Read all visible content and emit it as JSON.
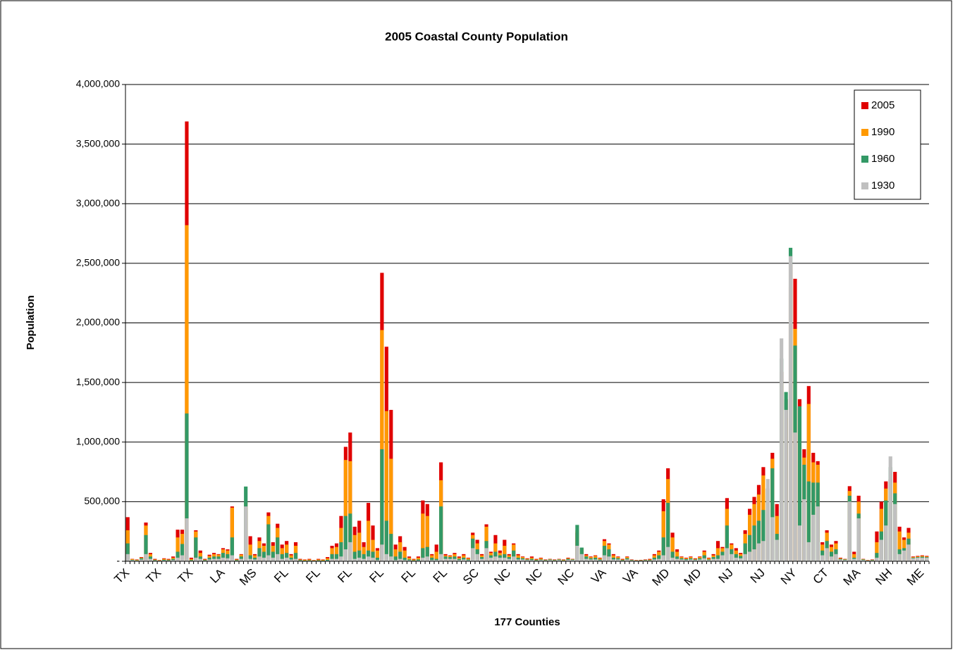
{
  "chart_data": {
    "type": "bar",
    "title": "2005 Coastal County Population",
    "xlabel": "177 Counties",
    "ylabel": "Population",
    "categories": [
      "TX",
      null,
      null,
      null,
      null,
      null,
      null,
      "TX",
      null,
      null,
      null,
      null,
      null,
      null,
      "TX",
      null,
      null,
      null,
      null,
      null,
      null,
      "LA",
      null,
      null,
      null,
      null,
      null,
      null,
      "MS",
      null,
      null,
      null,
      null,
      null,
      null,
      "FL",
      null,
      null,
      null,
      null,
      null,
      null,
      "FL",
      null,
      null,
      null,
      null,
      null,
      null,
      "FL",
      null,
      null,
      null,
      null,
      null,
      null,
      "FL",
      null,
      null,
      null,
      null,
      null,
      null,
      "FL",
      null,
      null,
      null,
      null,
      null,
      null,
      "FL",
      null,
      null,
      null,
      null,
      null,
      null,
      "SC",
      null,
      null,
      null,
      null,
      null,
      null,
      "NC",
      null,
      null,
      null,
      null,
      null,
      null,
      "NC",
      null,
      null,
      null,
      null,
      null,
      null,
      "NC",
      null,
      null,
      null,
      null,
      null,
      null,
      "VA",
      null,
      null,
      null,
      null,
      null,
      null,
      "VA",
      null,
      null,
      null,
      null,
      null,
      null,
      "MD",
      null,
      null,
      null,
      null,
      null,
      null,
      "MD",
      null,
      null,
      null,
      null,
      null,
      null,
      "NJ",
      null,
      null,
      null,
      null,
      null,
      null,
      "NJ",
      null,
      null,
      null,
      null,
      null,
      null,
      "NY",
      null,
      null,
      null,
      null,
      null,
      null,
      "CT",
      null,
      null,
      null,
      null,
      null,
      null,
      "MA",
      null,
      null,
      null,
      null,
      null,
      null,
      "NH",
      null,
      null,
      null,
      null,
      null,
      null,
      "ME",
      null
    ],
    "series": [
      {
        "name": "2005",
        "color": "#e00000",
        "values": [
          370000,
          20000,
          15000,
          35000,
          325000,
          70000,
          20000,
          10000,
          25000,
          20000,
          40000,
          265000,
          265000,
          3690000,
          30000,
          260000,
          90000,
          20000,
          55000,
          70000,
          60000,
          110000,
          100000,
          460000,
          20000,
          60000,
          450000,
          210000,
          60000,
          200000,
          150000,
          410000,
          160000,
          315000,
          140000,
          170000,
          60000,
          160000,
          20000,
          15000,
          20000,
          10000,
          20000,
          15000,
          35000,
          130000,
          150000,
          380000,
          960000,
          1080000,
          290000,
          340000,
          160000,
          490000,
          300000,
          110000,
          2420000,
          1800000,
          1270000,
          140000,
          210000,
          120000,
          40000,
          20000,
          40000,
          510000,
          480000,
          60000,
          140000,
          830000,
          60000,
          50000,
          70000,
          40000,
          60000,
          30000,
          240000,
          180000,
          60000,
          310000,
          80000,
          220000,
          90000,
          180000,
          60000,
          150000,
          60000,
          40000,
          25000,
          40000,
          20000,
          30000,
          15000,
          20000,
          15000,
          20000,
          15000,
          30000,
          20000,
          240000,
          110000,
          60000,
          40000,
          50000,
          30000,
          185000,
          150000,
          60000,
          40000,
          20000,
          40000,
          15000,
          10000,
          12000,
          15000,
          20000,
          60000,
          90000,
          520000,
          780000,
          240000,
          100000,
          40000,
          30000,
          40000,
          25000,
          40000,
          90000,
          30000,
          60000,
          170000,
          120000,
          530000,
          150000,
          110000,
          70000,
          260000,
          440000,
          540000,
          640000,
          790000,
          610000,
          910000,
          480000,
          1590000,
          1360000,
          2490000,
          2370000,
          1360000,
          940000,
          1470000,
          910000,
          840000,
          160000,
          260000,
          140000,
          170000,
          30000,
          20000,
          630000,
          80000,
          550000,
          20000,
          10000,
          15000,
          250000,
          500000,
          670000,
          690000,
          750000,
          290000,
          200000,
          280000,
          40000,
          45000,
          50000,
          45000
        ]
      },
      {
        "name": "1990",
        "color": "#ff9900",
        "values": [
          260000,
          18000,
          12000,
          30000,
          300000,
          60000,
          15000,
          8000,
          20000,
          15000,
          30000,
          200000,
          230000,
          2820000,
          20000,
          250000,
          70000,
          15000,
          45000,
          60000,
          55000,
          100000,
          90000,
          450000,
          15000,
          55000,
          497000,
          140000,
          50000,
          170000,
          130000,
          380000,
          130000,
          280000,
          110000,
          140000,
          50000,
          130000,
          15000,
          12000,
          15000,
          8000,
          15000,
          12000,
          25000,
          110000,
          120000,
          280000,
          850000,
          840000,
          220000,
          240000,
          120000,
          340000,
          180000,
          90000,
          1940000,
          1260000,
          860000,
          100000,
          160000,
          90000,
          30000,
          15000,
          30000,
          400000,
          380000,
          50000,
          80000,
          680000,
          50000,
          45000,
          60000,
          30000,
          50000,
          25000,
          220000,
          150000,
          50000,
          290000,
          70000,
          150000,
          70000,
          130000,
          50000,
          140000,
          50000,
          35000,
          20000,
          30000,
          15000,
          25000,
          12000,
          18000,
          12000,
          18000,
          12000,
          25000,
          18000,
          260000,
          110000,
          50000,
          35000,
          45000,
          25000,
          170000,
          140000,
          50000,
          35000,
          15000,
          35000,
          12000,
          8000,
          10000,
          12000,
          15000,
          50000,
          80000,
          420000,
          690000,
          200000,
          80000,
          35000,
          25000,
          35000,
          20000,
          35000,
          80000,
          25000,
          50000,
          110000,
          110000,
          440000,
          140000,
          90000,
          60000,
          230000,
          390000,
          480000,
          560000,
          720000,
          550000,
          860000,
          380000,
          1490000,
          1200000,
          2300000,
          1950000,
          1290000,
          870000,
          1320000,
          830000,
          810000,
          140000,
          240000,
          120000,
          150000,
          25000,
          18000,
          590000,
          60000,
          500000,
          18000,
          8000,
          12000,
          160000,
          440000,
          610000,
          660000,
          660000,
          250000,
          180000,
          240000,
          35000,
          40000,
          45000,
          40000
        ]
      },
      {
        "name": "1960",
        "color": "#339966",
        "values": [
          150000,
          12000,
          8000,
          25000,
          220000,
          40000,
          10000,
          5000,
          12000,
          10000,
          20000,
          80000,
          145000,
          1240000,
          10000,
          200000,
          40000,
          10000,
          30000,
          40000,
          40000,
          70000,
          60000,
          200000,
          10000,
          40000,
          627000,
          50000,
          30000,
          110000,
          80000,
          310000,
          80000,
          200000,
          60000,
          70000,
          30000,
          70000,
          10000,
          6000,
          8000,
          5000,
          8000,
          6000,
          12000,
          60000,
          60000,
          160000,
          380000,
          400000,
          80000,
          90000,
          60000,
          90000,
          80000,
          30000,
          940000,
          340000,
          230000,
          40000,
          80000,
          30000,
          15000,
          8000,
          15000,
          110000,
          120000,
          30000,
          20000,
          460000,
          40000,
          35000,
          40000,
          20000,
          30000,
          15000,
          190000,
          100000,
          35000,
          170000,
          50000,
          80000,
          50000,
          60000,
          35000,
          90000,
          30000,
          25000,
          15000,
          20000,
          10000,
          15000,
          10000,
          15000,
          10000,
          15000,
          8000,
          20000,
          15000,
          305000,
          115000,
          40000,
          25000,
          30000,
          15000,
          130000,
          100000,
          30000,
          25000,
          10000,
          25000,
          10000,
          6000,
          8000,
          10000,
          10000,
          30000,
          50000,
          200000,
          490000,
          80000,
          40000,
          25000,
          18000,
          25000,
          15000,
          25000,
          50000,
          15000,
          35000,
          50000,
          80000,
          300000,
          100000,
          60000,
          45000,
          150000,
          220000,
          300000,
          340000,
          430000,
          610000,
          780000,
          230000,
          1700000,
          1420000,
          2630000,
          1810000,
          1300000,
          810000,
          670000,
          660000,
          660000,
          90000,
          170000,
          80000,
          100000,
          20000,
          15000,
          550000,
          30000,
          400000,
          15000,
          6000,
          10000,
          70000,
          250000,
          510000,
          790000,
          570000,
          100000,
          110000,
          190000,
          30000,
          35000,
          38000,
          35000
        ]
      },
      {
        "name": "1930",
        "color": "#c0c0c0",
        "values": [
          60000,
          8000,
          5000,
          15000,
          60000,
          20000,
          5000,
          3000,
          6000,
          5000,
          10000,
          30000,
          50000,
          360000,
          5000,
          30000,
          20000,
          5000,
          15000,
          20000,
          20000,
          30000,
          25000,
          50000,
          5000,
          20000,
          460000,
          20000,
          15000,
          40000,
          30000,
          50000,
          30000,
          60000,
          20000,
          30000,
          15000,
          20000,
          5000,
          3000,
          4000,
          3000,
          4000,
          3000,
          5000,
          20000,
          20000,
          40000,
          100000,
          160000,
          20000,
          30000,
          20000,
          40000,
          30000,
          10000,
          140000,
          60000,
          40000,
          10000,
          20000,
          10000,
          8000,
          4000,
          6000,
          30000,
          40000,
          10000,
          10000,
          60000,
          20000,
          20000,
          20000,
          10000,
          15000,
          8000,
          110000,
          60000,
          20000,
          110000,
          30000,
          40000,
          30000,
          30000,
          20000,
          40000,
          15000,
          15000,
          10000,
          10000,
          5000,
          10000,
          6000,
          10000,
          6000,
          10000,
          5000,
          12000,
          10000,
          130000,
          60000,
          20000,
          15000,
          15000,
          8000,
          50000,
          40000,
          15000,
          15000,
          5000,
          15000,
          6000,
          4000,
          5000,
          6000,
          6000,
          15000,
          20000,
          50000,
          120000,
          30000,
          20000,
          15000,
          10000,
          15000,
          10000,
          15000,
          25000,
          10000,
          20000,
          20000,
          50000,
          110000,
          60000,
          30000,
          25000,
          60000,
          80000,
          100000,
          150000,
          170000,
          690000,
          370000,
          180000,
          1870000,
          1270000,
          2560000,
          1080000,
          300000,
          520000,
          160000,
          390000,
          460000,
          50000,
          110000,
          40000,
          60000,
          15000,
          10000,
          500000,
          20000,
          360000,
          10000,
          4000,
          6000,
          30000,
          180000,
          300000,
          880000,
          480000,
          60000,
          90000,
          140000,
          25000,
          30000,
          30000,
          30000
        ]
      }
    ],
    "ylim": [
      0,
      4000000
    ],
    "yticks": [
      {
        "value": 0,
        "label": "-"
      },
      {
        "value": 500000,
        "label": "500,000"
      },
      {
        "value": 1000000,
        "label": "1,000,000"
      },
      {
        "value": 1500000,
        "label": "1,500,000"
      },
      {
        "value": 2000000,
        "label": "2,000,000"
      },
      {
        "value": 2500000,
        "label": "2,500,000"
      },
      {
        "value": 3000000,
        "label": "3,000,000"
      },
      {
        "value": 3500000,
        "label": "3,500,000"
      },
      {
        "value": 4000000,
        "label": "4,000,000"
      }
    ],
    "grid": true,
    "legend": "upper right"
  }
}
